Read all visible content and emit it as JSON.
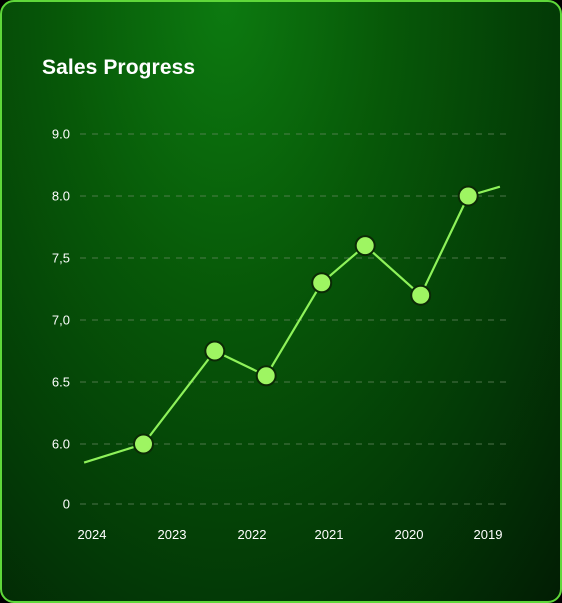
{
  "chart_data": {
    "type": "line",
    "title": "Sales Progress",
    "xlabel": "",
    "ylabel": "",
    "x_ticks": [
      "2024",
      "2023",
      "2022",
      "2021",
      "2020",
      "2019"
    ],
    "y_ticks": [
      "9.0",
      "8.0",
      "7,5",
      "7,0",
      "6.5",
      "6.0",
      "0"
    ],
    "grid": true,
    "series": [
      {
        "x": [
          2024.1,
          2023.35,
          2022.45,
          2021.8,
          2021.1,
          2020.55,
          2019.85,
          2019.25,
          2018.85
        ],
        "values": [
          5.85,
          6.0,
          6.75,
          6.55,
          7.3,
          7.6,
          7.2,
          8.0,
          8.15
        ],
        "markers": [
          false,
          true,
          true,
          true,
          true,
          true,
          true,
          true,
          false
        ]
      }
    ],
    "colors": {
      "line": "#8ef25a",
      "marker_fill": "#9ef562",
      "marker_stroke": "#0b2a06",
      "grid": "#6c8a66"
    }
  }
}
